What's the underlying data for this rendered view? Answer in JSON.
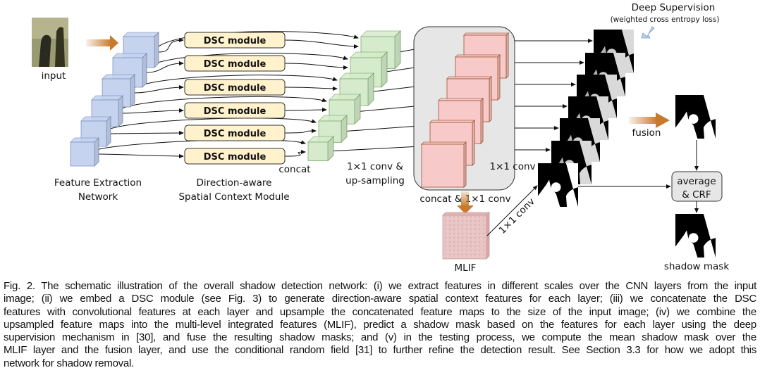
{
  "figure": {
    "input_label": "input",
    "feature_extraction_label": [
      "Feature Extraction",
      "Network"
    ],
    "dsc_label": "DSC module",
    "dsc_module_label": [
      "Direction-aware",
      "Spatial Context Module"
    ],
    "concat_label": "concat",
    "upsampling_label": [
      "1×1 conv &",
      "up-sampling"
    ],
    "concat_conv_label": "concat & 1×1 conv",
    "conv_label": "1×1 conv",
    "mlif_conv_label": "1×1 conv",
    "mlif_label": "MLIF",
    "deep_supervision_label": "Deep Supervision",
    "loss_label": "(weighted cross entropy loss)",
    "fusion_label": "fusion",
    "average_label": [
      "average",
      "& CRF"
    ],
    "shadow_mask_label": "shadow mask",
    "colors": {
      "feature_blue": "#c5d3ee",
      "dsc_fill": "#fff2cc",
      "green": "#d5ebcc",
      "pink": "#f8c9c9",
      "gray_box": "#e6e6e6",
      "orange_arrow": "#c87a2c",
      "supervision_arrow": "#b8cfe8"
    }
  },
  "caption": {
    "lines": [
      "Fig. 2. The schematic illustration of the overall shadow detection network: (i) we extract features in different scales over the CNN layers from the input",
      "image; (ii) we embed a DSC module (see Fig. 3) to generate direction-aware spatial context features for each layer; (iii) we concatenate the DSC",
      "features with convolutional features at each layer and upsample the concatenated feature maps to the size of the input image; (iv) we combine the",
      "upsampled feature maps into the multi-level integrated features (MLIF), predict a shadow mask based on the features for each layer using the deep",
      "supervision mechanism in [30], and fuse the resulting shadow masks; and (v) in the testing process, we compute the mean shadow mask over the",
      "MLIF layer and the fusion layer, and use the conditional random field [31] to further refine the detection result. See Section 3.3 for how we adopt this",
      "network for shadow removal."
    ]
  }
}
